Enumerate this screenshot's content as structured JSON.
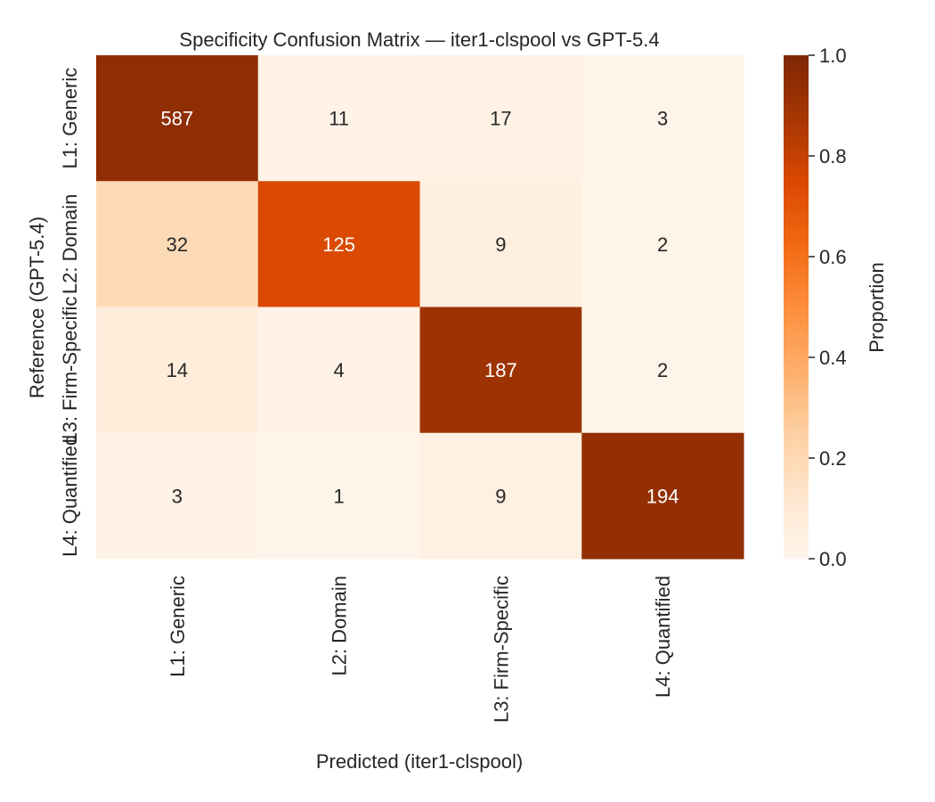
{
  "chart_data": {
    "type": "heatmap",
    "title": "Specificity Confusion Matrix — iter1-clspool vs GPT-5.4",
    "xlabel": "Predicted (iter1-clspool)",
    "ylabel": "Reference (GPT-5.4)",
    "x_categories": [
      "L1: Generic",
      "L2: Domain",
      "L3: Firm-Specific",
      "L4: Quantified"
    ],
    "y_categories": [
      "L1: Generic",
      "L2: Domain",
      "L3: Firm-Specific",
      "L4: Quantified"
    ],
    "counts": [
      [
        587,
        11,
        17,
        3
      ],
      [
        32,
        125,
        9,
        2
      ],
      [
        14,
        4,
        187,
        2
      ],
      [
        3,
        1,
        9,
        194
      ]
    ],
    "color_value": "row-normalized proportion",
    "colormap": "Oranges",
    "colorbar": {
      "label": "Proportion",
      "range": [
        0.0,
        1.0
      ],
      "ticks": [
        "0.0",
        "0.2",
        "0.4",
        "0.6",
        "0.8",
        "1.0"
      ]
    },
    "grid": false
  }
}
